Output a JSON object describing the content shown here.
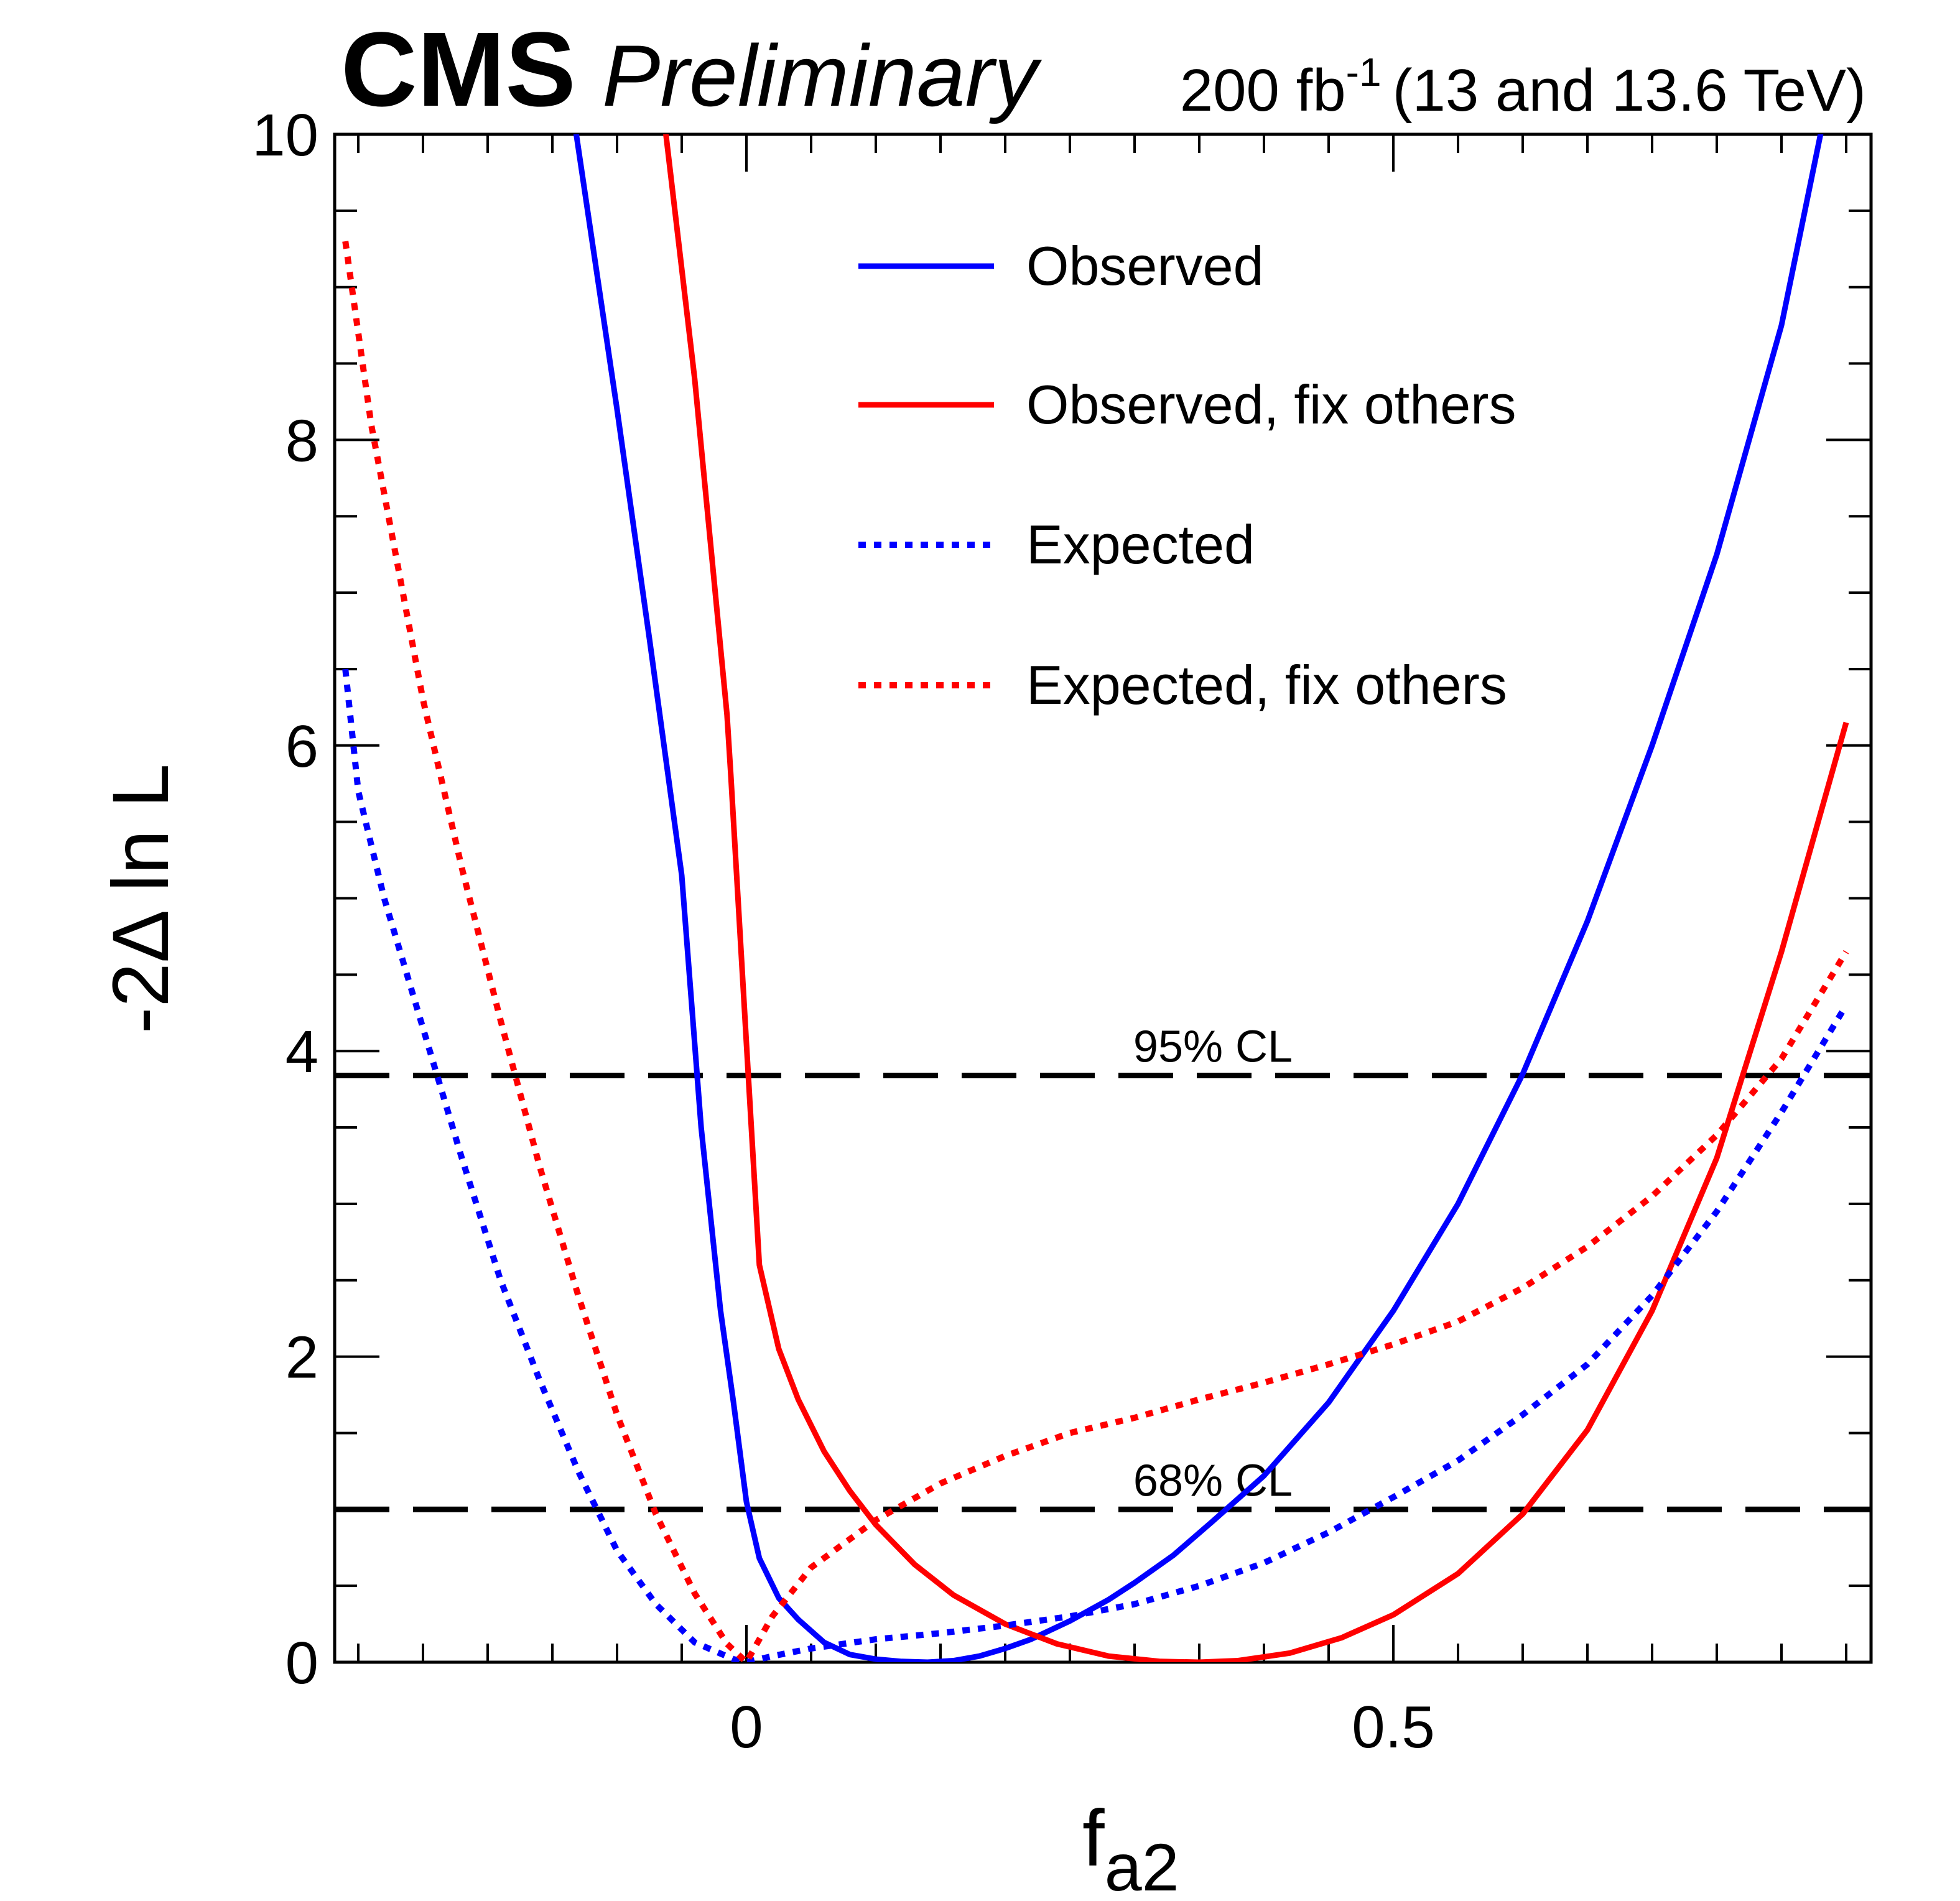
{
  "header": {
    "experiment": "CMS",
    "status": "Preliminary",
    "lumi_value": "200 fb",
    "lumi_exponent": "-1",
    "energy": "(13 and 13.6 TeV)"
  },
  "chart_data": {
    "type": "line",
    "title": "CMS Preliminary",
    "xlabel": "f",
    "xlabel_sub": "a2",
    "ylabel": "-2Δ ln L",
    "xlim": [
      -0.31,
      0.855
    ],
    "ylim": [
      0,
      10
    ],
    "x_ticks": [
      {
        "value": 0,
        "label": "0"
      },
      {
        "value": 0.5,
        "label": "0.5"
      }
    ],
    "y_ticks": [
      {
        "value": 0,
        "label": "0"
      },
      {
        "value": 2,
        "label": "2"
      },
      {
        "value": 4,
        "label": "4"
      },
      {
        "value": 6,
        "label": "6"
      },
      {
        "value": 8,
        "label": "8"
      },
      {
        "value": 10,
        "label": "10"
      }
    ],
    "legend_position": "top-right",
    "series": [
      {
        "name": "Observed",
        "color": "#0000ff",
        "style": "solid",
        "x": [
          -0.135,
          -0.1,
          -0.075,
          -0.05,
          -0.035,
          -0.02,
          -0.01,
          0.0,
          0.01,
          0.025,
          0.04,
          0.06,
          0.08,
          0.1,
          0.12,
          0.14,
          0.16,
          0.18,
          0.2,
          0.22,
          0.25,
          0.28,
          0.3,
          0.33,
          0.36,
          0.4,
          0.45,
          0.5,
          0.55,
          0.6,
          0.65,
          0.7,
          0.75,
          0.8,
          0.835
        ],
        "y": [
          10.2,
          8.2,
          6.7,
          5.15,
          3.5,
          2.3,
          1.7,
          1.05,
          0.68,
          0.42,
          0.28,
          0.13,
          0.05,
          0.02,
          0.005,
          0.0,
          0.01,
          0.04,
          0.09,
          0.15,
          0.27,
          0.41,
          0.52,
          0.7,
          0.92,
          1.22,
          1.7,
          2.3,
          3.0,
          3.85,
          4.85,
          6.0,
          7.25,
          8.75,
          10.2
        ]
      },
      {
        "name": "Observed, fix others",
        "color": "#ff0000",
        "style": "solid",
        "x": [
          -0.065,
          -0.04,
          -0.015,
          -0.012,
          0.0,
          0.01,
          0.025,
          0.04,
          0.06,
          0.08,
          0.1,
          0.13,
          0.16,
          0.2,
          0.24,
          0.28,
          0.32,
          0.35,
          0.38,
          0.42,
          0.46,
          0.5,
          0.55,
          0.6,
          0.65,
          0.7,
          0.75,
          0.8,
          0.85
        ],
        "y": [
          10.2,
          8.4,
          6.2,
          5.8,
          4.05,
          2.6,
          2.05,
          1.72,
          1.38,
          1.12,
          0.9,
          0.64,
          0.44,
          0.25,
          0.12,
          0.04,
          0.005,
          0.0,
          0.01,
          0.06,
          0.16,
          0.31,
          0.58,
          0.97,
          1.52,
          2.3,
          3.3,
          4.65,
          6.15
        ]
      },
      {
        "name": "Expected",
        "color": "#0000ff",
        "style": "dotted",
        "x": [
          -0.31,
          -0.3,
          -0.28,
          -0.25,
          -0.22,
          -0.19,
          -0.16,
          -0.13,
          -0.1,
          -0.07,
          -0.04,
          -0.01,
          0.0,
          0.02,
          0.05,
          0.1,
          0.15,
          0.2,
          0.25,
          0.3,
          0.35,
          0.4,
          0.45,
          0.5,
          0.55,
          0.6,
          0.65,
          0.7,
          0.75,
          0.8,
          0.85
        ],
        "y": [
          6.5,
          5.7,
          5.0,
          4.15,
          3.3,
          2.5,
          1.85,
          1.25,
          0.73,
          0.38,
          0.13,
          0.02,
          0.0,
          0.04,
          0.09,
          0.15,
          0.19,
          0.24,
          0.3,
          0.38,
          0.5,
          0.65,
          0.85,
          1.08,
          1.32,
          1.62,
          1.95,
          2.4,
          2.95,
          3.6,
          4.3
        ]
      },
      {
        "name": "Expected, fix others",
        "color": "#ff0000",
        "style": "dotted",
        "x": [
          -0.31,
          -0.29,
          -0.27,
          -0.25,
          -0.22,
          -0.19,
          -0.16,
          -0.13,
          -0.1,
          -0.07,
          -0.04,
          -0.015,
          0.0,
          0.02,
          0.05,
          0.1,
          0.15,
          0.2,
          0.25,
          0.3,
          0.35,
          0.4,
          0.45,
          0.5,
          0.55,
          0.6,
          0.65,
          0.7,
          0.75,
          0.8,
          0.85
        ],
        "y": [
          9.3,
          8.1,
          7.2,
          6.3,
          5.2,
          4.2,
          3.25,
          2.4,
          1.62,
          0.97,
          0.45,
          0.12,
          0.0,
          0.3,
          0.62,
          0.93,
          1.17,
          1.35,
          1.5,
          1.6,
          1.72,
          1.83,
          1.95,
          2.08,
          2.23,
          2.45,
          2.72,
          3.05,
          3.45,
          3.95,
          4.65
        ]
      }
    ],
    "reference_lines": [
      {
        "label": "95% CL",
        "y": 3.84
      },
      {
        "label": "68% CL",
        "y": 1.0
      }
    ]
  }
}
